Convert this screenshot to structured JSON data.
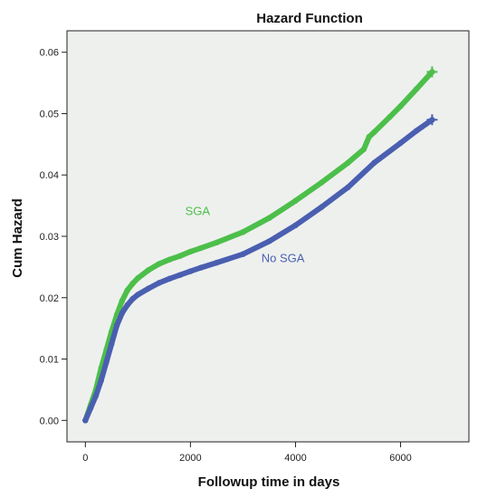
{
  "chart_data": {
    "type": "line",
    "title": "Hazard Function",
    "xlabel": "Followup time in days",
    "ylabel": "Cum Hazard",
    "xlim": [
      -350,
      7300
    ],
    "ylim": [
      -0.0035,
      0.0635
    ],
    "x_ticks": [
      0,
      2000,
      4000,
      6000
    ],
    "x_tick_labels": [
      "0",
      "2000",
      "4000",
      "6000"
    ],
    "y_ticks": [
      0.0,
      0.01,
      0.02,
      0.03,
      0.04,
      0.05,
      0.06
    ],
    "y_tick_labels": [
      "0.00",
      "0.01",
      "0.02",
      "0.03",
      "0.04",
      "0.05",
      "0.06"
    ],
    "grid": false,
    "background_color": "#eef0ee",
    "series": [
      {
        "name": "SGA",
        "color": "#4cbf4a",
        "label_position": {
          "x": 1900,
          "y": 0.0335
        },
        "x": [
          0,
          100,
          200,
          300,
          400,
          500,
          600,
          700,
          800,
          900,
          1000,
          1200,
          1400,
          1600,
          1800,
          2000,
          2200,
          2500,
          3000,
          3500,
          4000,
          4500,
          5000,
          5300,
          5400,
          5500,
          5800,
          6000,
          6300,
          6600
        ],
        "values": [
          0.0,
          0.0025,
          0.005,
          0.0085,
          0.0115,
          0.0145,
          0.0172,
          0.0195,
          0.0212,
          0.0223,
          0.0232,
          0.0245,
          0.0255,
          0.0262,
          0.0268,
          0.0275,
          0.0281,
          0.029,
          0.0307,
          0.033,
          0.0358,
          0.0388,
          0.042,
          0.0442,
          0.0462,
          0.047,
          0.0495,
          0.0512,
          0.054,
          0.0568
        ]
      },
      {
        "name": "No SGA",
        "color": "#4a5fb0",
        "label_position": {
          "x": 3350,
          "y": 0.0258
        },
        "x": [
          0,
          100,
          200,
          300,
          400,
          500,
          600,
          700,
          800,
          900,
          1000,
          1200,
          1400,
          1600,
          1800,
          2000,
          2200,
          2500,
          3000,
          3500,
          4000,
          4500,
          5000,
          5500,
          6000,
          6300,
          6600
        ],
        "values": [
          0.0,
          0.002,
          0.004,
          0.0065,
          0.0095,
          0.0125,
          0.0155,
          0.0175,
          0.0188,
          0.0198,
          0.0205,
          0.0215,
          0.0224,
          0.0231,
          0.0237,
          0.0243,
          0.0249,
          0.0257,
          0.0271,
          0.0292,
          0.0318,
          0.0348,
          0.038,
          0.042,
          0.0452,
          0.0472,
          0.049
        ]
      }
    ]
  }
}
